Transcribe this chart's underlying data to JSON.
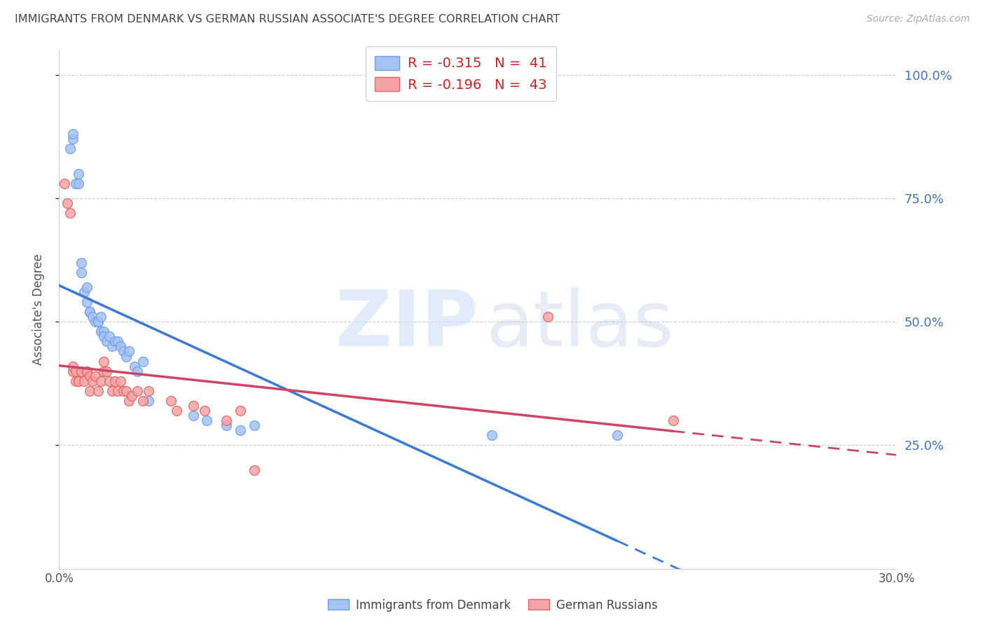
{
  "title": "IMMIGRANTS FROM DENMARK VS GERMAN RUSSIAN ASSOCIATE'S DEGREE CORRELATION CHART",
  "source": "Source: ZipAtlas.com",
  "ylabel": "Associate's Degree",
  "xlim": [
    0.0,
    0.3
  ],
  "ylim": [
    0.0,
    1.05
  ],
  "yticks": [
    0.25,
    0.5,
    0.75,
    1.0
  ],
  "ytick_labels": [
    "25.0%",
    "50.0%",
    "75.0%",
    "100.0%"
  ],
  "xticks": [
    0.0,
    0.05,
    0.1,
    0.15,
    0.2,
    0.25,
    0.3
  ],
  "xtick_labels": [
    "0.0%",
    "",
    "",
    "",
    "",
    "",
    "30.0%"
  ],
  "legend_r1": "R = -0.315",
  "legend_n1": "N =  41",
  "legend_r2": "R = -0.196",
  "legend_n2": "N =  43",
  "series1_label": "Immigrants from Denmark",
  "series2_label": "German Russians",
  "series1_color": "#a4c2f4",
  "series2_color": "#f4a4a4",
  "series1_edge": "#6d9eeb",
  "series2_edge": "#e06666",
  "line1_color": "#3c78d8",
  "line2_color": "#cc4466",
  "background_color": "#ffffff",
  "grid_color": "#cccccc",
  "title_color": "#444444",
  "right_tick_color": "#4472c4",
  "denmark_x": [
    0.004,
    0.005,
    0.005,
    0.006,
    0.007,
    0.007,
    0.008,
    0.008,
    0.009,
    0.01,
    0.01,
    0.011,
    0.011,
    0.012,
    0.013,
    0.014,
    0.014,
    0.015,
    0.015,
    0.016,
    0.016,
    0.017,
    0.018,
    0.019,
    0.02,
    0.021,
    0.022,
    0.023,
    0.024,
    0.025,
    0.027,
    0.028,
    0.03,
    0.032,
    0.048,
    0.053,
    0.06,
    0.065,
    0.07,
    0.155,
    0.2
  ],
  "denmark_y": [
    0.85,
    0.87,
    0.88,
    0.78,
    0.8,
    0.78,
    0.62,
    0.6,
    0.56,
    0.54,
    0.57,
    0.52,
    0.52,
    0.51,
    0.5,
    0.5,
    0.5,
    0.48,
    0.51,
    0.48,
    0.47,
    0.46,
    0.47,
    0.45,
    0.46,
    0.46,
    0.45,
    0.44,
    0.43,
    0.44,
    0.41,
    0.4,
    0.42,
    0.34,
    0.31,
    0.3,
    0.29,
    0.28,
    0.29,
    0.27,
    0.27
  ],
  "german_x": [
    0.002,
    0.003,
    0.004,
    0.005,
    0.005,
    0.006,
    0.006,
    0.007,
    0.007,
    0.008,
    0.009,
    0.01,
    0.01,
    0.011,
    0.011,
    0.012,
    0.013,
    0.014,
    0.015,
    0.016,
    0.016,
    0.017,
    0.018,
    0.019,
    0.02,
    0.021,
    0.022,
    0.023,
    0.024,
    0.025,
    0.026,
    0.028,
    0.03,
    0.032,
    0.04,
    0.042,
    0.048,
    0.052,
    0.06,
    0.065,
    0.07,
    0.175,
    0.22
  ],
  "german_y": [
    0.78,
    0.74,
    0.72,
    0.4,
    0.41,
    0.38,
    0.4,
    0.38,
    0.38,
    0.4,
    0.38,
    0.4,
    0.4,
    0.39,
    0.36,
    0.38,
    0.39,
    0.36,
    0.38,
    0.4,
    0.42,
    0.4,
    0.38,
    0.36,
    0.38,
    0.36,
    0.38,
    0.36,
    0.36,
    0.34,
    0.35,
    0.36,
    0.34,
    0.36,
    0.34,
    0.32,
    0.33,
    0.32,
    0.3,
    0.32,
    0.2,
    0.51,
    0.3
  ],
  "marker_size": 100
}
